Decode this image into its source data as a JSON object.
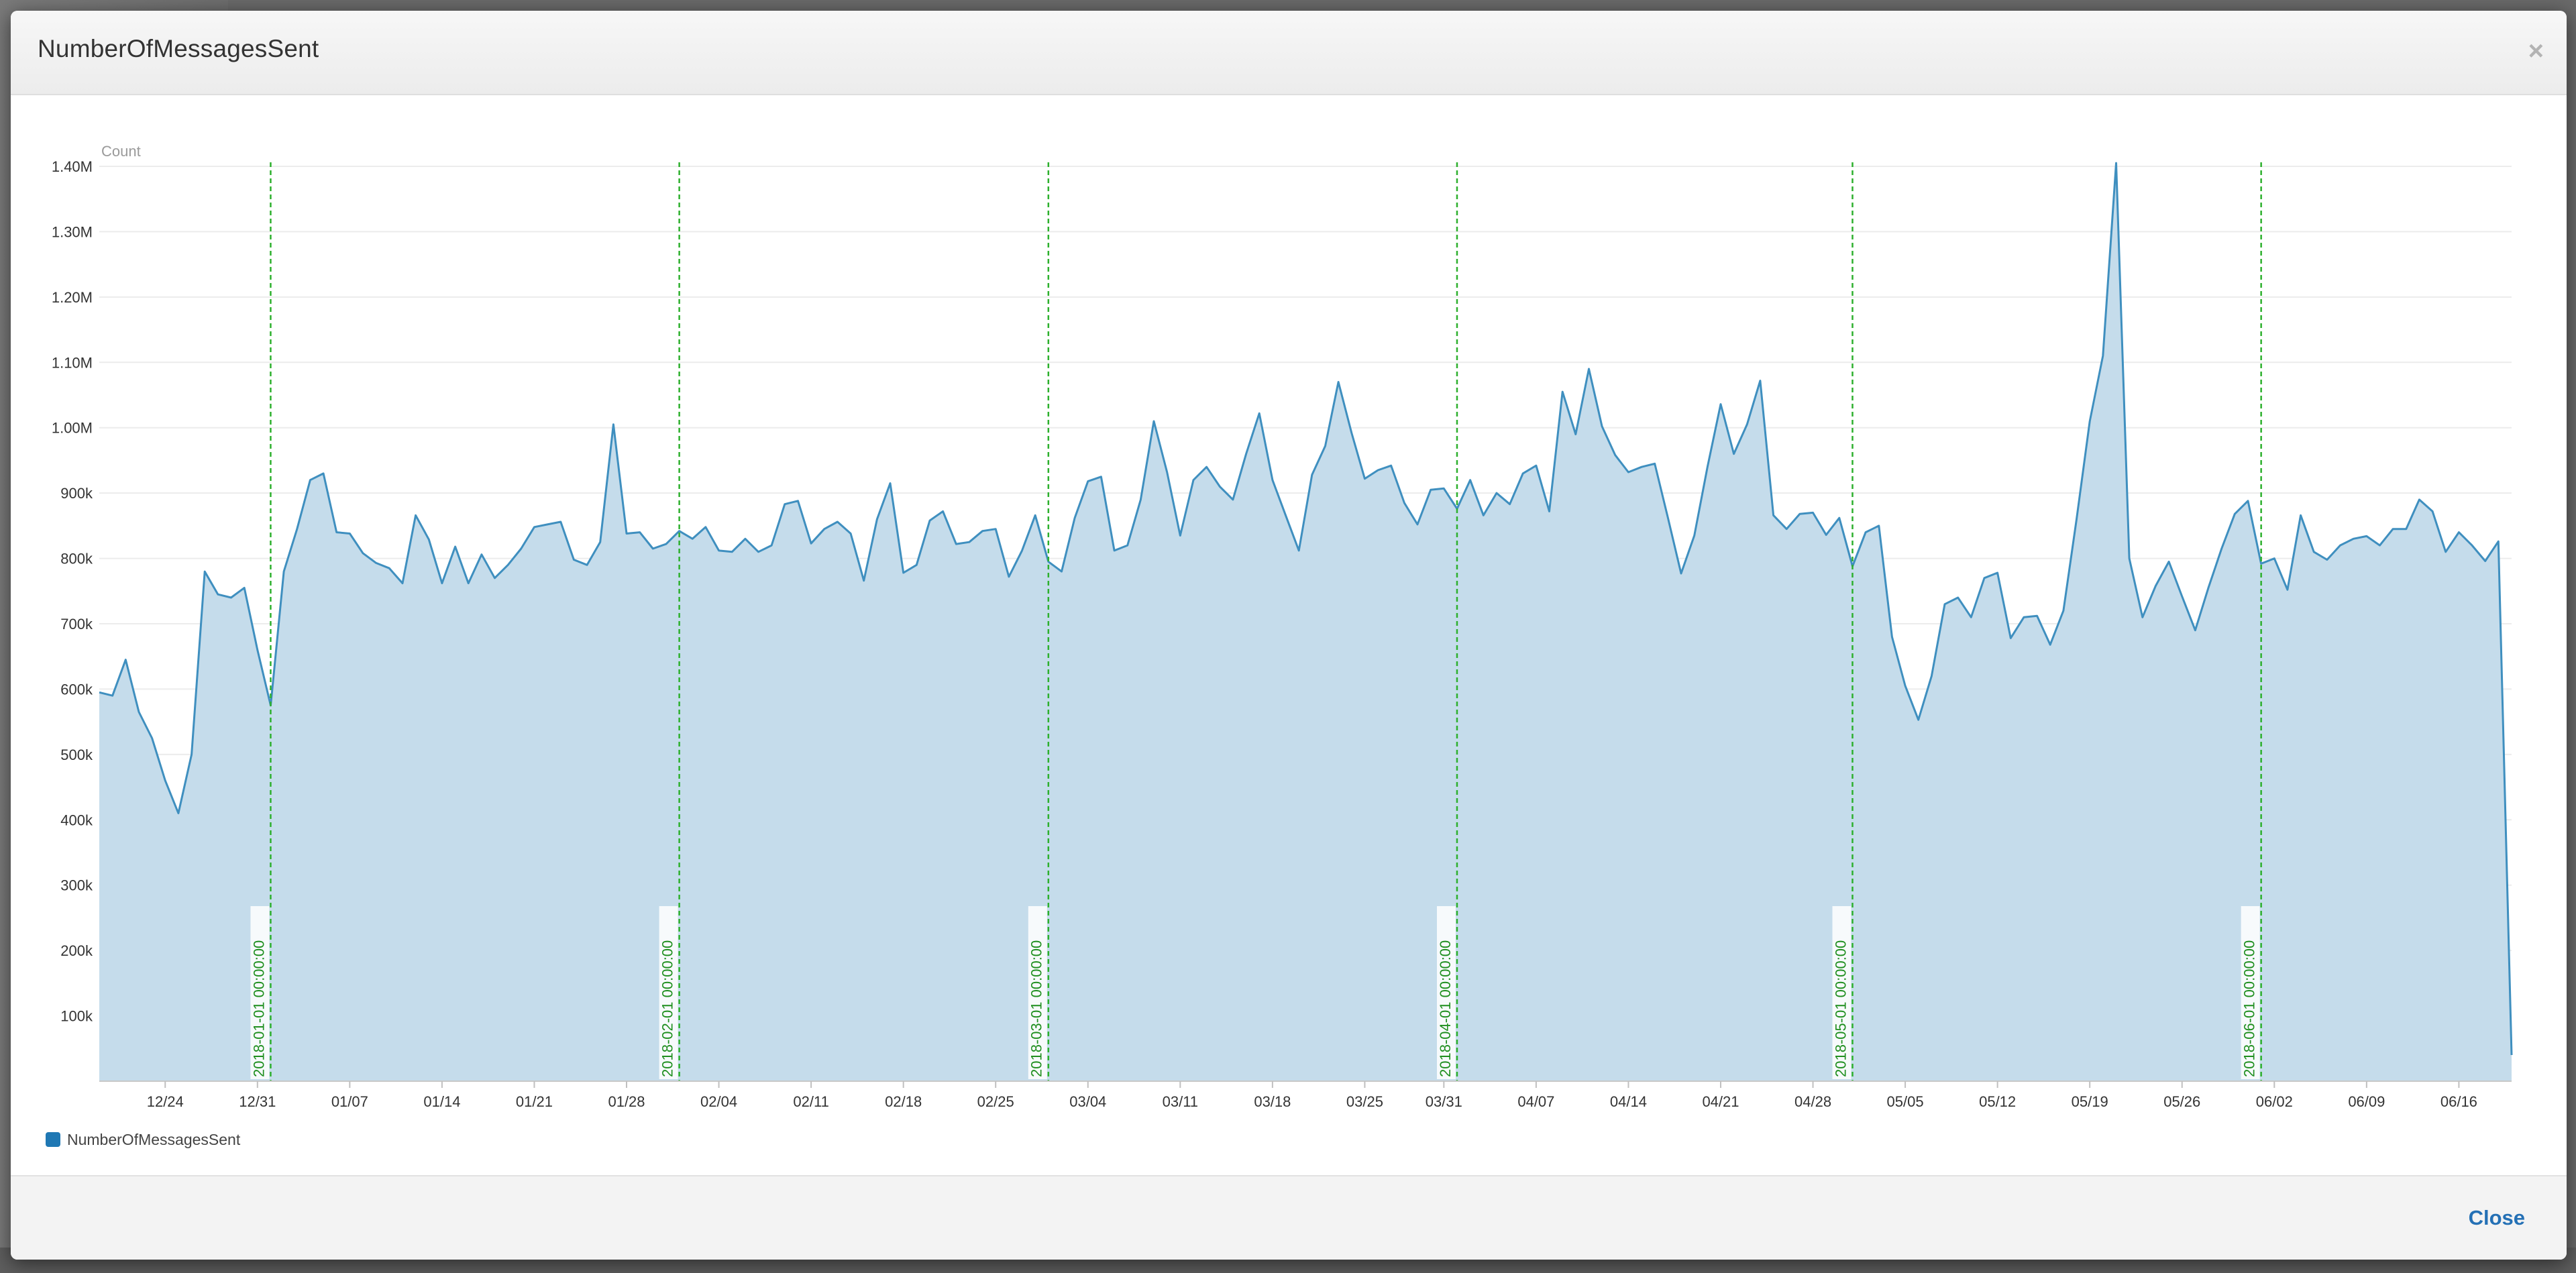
{
  "modal": {
    "title": "NumberOfMessagesSent",
    "close_x": "×",
    "close_label": "Close"
  },
  "colors": {
    "line": "#3f8fbf",
    "fill": "#c5dceb",
    "marker": "#2db02d",
    "marker_text": "#1f8f1f",
    "grid": "#ececec",
    "legend_swatch": "#1f78b4",
    "overlay": "#6a6a6a"
  },
  "chart_data": {
    "type": "area",
    "title": "",
    "ylabel": "Count",
    "xlabel": "",
    "ylim": [
      0,
      1400000
    ],
    "xlim": [
      "2017-12-19",
      "2018-06-20"
    ],
    "grid": true,
    "legend": "bottom-left",
    "y_ticks": [
      {
        "v": 100000,
        "label": "100k"
      },
      {
        "v": 200000,
        "label": "200k"
      },
      {
        "v": 300000,
        "label": "300k"
      },
      {
        "v": 400000,
        "label": "400k"
      },
      {
        "v": 500000,
        "label": "500k"
      },
      {
        "v": 600000,
        "label": "600k"
      },
      {
        "v": 700000,
        "label": "700k"
      },
      {
        "v": 800000,
        "label": "800k"
      },
      {
        "v": 900000,
        "label": "900k"
      },
      {
        "v": 1000000,
        "label": "1.00M"
      },
      {
        "v": 1100000,
        "label": "1.10M"
      },
      {
        "v": 1200000,
        "label": "1.20M"
      },
      {
        "v": 1300000,
        "label": "1.30M"
      },
      {
        "v": 1400000,
        "label": "1.40M"
      }
    ],
    "x_ticks": [
      {
        "date": "2017-12-24",
        "label": "12/24"
      },
      {
        "date": "2017-12-31",
        "label": "12/31"
      },
      {
        "date": "2018-01-07",
        "label": "01/07"
      },
      {
        "date": "2018-01-14",
        "label": "01/14"
      },
      {
        "date": "2018-01-21",
        "label": "01/21"
      },
      {
        "date": "2018-01-28",
        "label": "01/28"
      },
      {
        "date": "2018-02-04",
        "label": "02/04"
      },
      {
        "date": "2018-02-11",
        "label": "02/11"
      },
      {
        "date": "2018-02-18",
        "label": "02/18"
      },
      {
        "date": "2018-02-25",
        "label": "02/25"
      },
      {
        "date": "2018-03-04",
        "label": "03/04"
      },
      {
        "date": "2018-03-11",
        "label": "03/11"
      },
      {
        "date": "2018-03-18",
        "label": "03/18"
      },
      {
        "date": "2018-03-25",
        "label": "03/25"
      },
      {
        "date": "2018-03-31",
        "label": "03/31"
      },
      {
        "date": "2018-04-07",
        "label": "04/07"
      },
      {
        "date": "2018-04-14",
        "label": "04/14"
      },
      {
        "date": "2018-04-21",
        "label": "04/21"
      },
      {
        "date": "2018-04-28",
        "label": "04/28"
      },
      {
        "date": "2018-05-05",
        "label": "05/05"
      },
      {
        "date": "2018-05-12",
        "label": "05/12"
      },
      {
        "date": "2018-05-19",
        "label": "05/19"
      },
      {
        "date": "2018-05-26",
        "label": "05/26"
      },
      {
        "date": "2018-06-02",
        "label": "06/02"
      },
      {
        "date": "2018-06-09",
        "label": "06/09"
      },
      {
        "date": "2018-06-16",
        "label": "06/16"
      }
    ],
    "markers": [
      {
        "date": "2018-01-01",
        "label": "2018-01-01 00:00:00"
      },
      {
        "date": "2018-02-01",
        "label": "2018-02-01 00:00:00"
      },
      {
        "date": "2018-03-01",
        "label": "2018-03-01 00:00:00"
      },
      {
        "date": "2018-04-01",
        "label": "2018-04-01 00:00:00"
      },
      {
        "date": "2018-05-01",
        "label": "2018-05-01 00:00:00"
      },
      {
        "date": "2018-06-01",
        "label": "2018-06-01 00:00:00"
      }
    ],
    "series": [
      {
        "name": "NumberOfMessagesSent",
        "points": [
          [
            "2017-12-19",
            595000
          ],
          [
            "2017-12-20",
            590000
          ],
          [
            "2017-12-21",
            645000
          ],
          [
            "2017-12-22",
            565000
          ],
          [
            "2017-12-23",
            525000
          ],
          [
            "2017-12-24",
            460000
          ],
          [
            "2017-12-25",
            410000
          ],
          [
            "2017-12-26",
            500000
          ],
          [
            "2017-12-27",
            780000
          ],
          [
            "2017-12-28",
            745000
          ],
          [
            "2017-12-29",
            740000
          ],
          [
            "2017-12-30",
            755000
          ],
          [
            "2017-12-31",
            660000
          ],
          [
            "2018-01-01",
            575000
          ],
          [
            "2018-01-02",
            780000
          ],
          [
            "2018-01-03",
            845000
          ],
          [
            "2018-01-04",
            920000
          ],
          [
            "2018-01-05",
            930000
          ],
          [
            "2018-01-06",
            840000
          ],
          [
            "2018-01-07",
            838000
          ],
          [
            "2018-01-08",
            808000
          ],
          [
            "2018-01-09",
            793000
          ],
          [
            "2018-01-10",
            785000
          ],
          [
            "2018-01-11",
            762000
          ],
          [
            "2018-01-12",
            866000
          ],
          [
            "2018-01-13",
            829000
          ],
          [
            "2018-01-14",
            762000
          ],
          [
            "2018-01-15",
            818000
          ],
          [
            "2018-01-16",
            762000
          ],
          [
            "2018-01-17",
            806000
          ],
          [
            "2018-01-18",
            770000
          ],
          [
            "2018-01-19",
            790000
          ],
          [
            "2018-01-20",
            815000
          ],
          [
            "2018-01-21",
            848000
          ],
          [
            "2018-01-22",
            852000
          ],
          [
            "2018-01-23",
            856000
          ],
          [
            "2018-01-24",
            798000
          ],
          [
            "2018-01-25",
            790000
          ],
          [
            "2018-01-26",
            825000
          ],
          [
            "2018-01-27",
            1005000
          ],
          [
            "2018-01-28",
            838000
          ],
          [
            "2018-01-29",
            840000
          ],
          [
            "2018-01-30",
            815000
          ],
          [
            "2018-01-31",
            822000
          ],
          [
            "2018-02-01",
            842000
          ],
          [
            "2018-02-02",
            830000
          ],
          [
            "2018-02-03",
            848000
          ],
          [
            "2018-02-04",
            812000
          ],
          [
            "2018-02-05",
            810000
          ],
          [
            "2018-02-06",
            830000
          ],
          [
            "2018-02-07",
            810000
          ],
          [
            "2018-02-08",
            820000
          ],
          [
            "2018-02-09",
            883000
          ],
          [
            "2018-02-10",
            888000
          ],
          [
            "2018-02-11",
            823000
          ],
          [
            "2018-02-12",
            845000
          ],
          [
            "2018-02-13",
            856000
          ],
          [
            "2018-02-14",
            838000
          ],
          [
            "2018-02-15",
            766000
          ],
          [
            "2018-02-16",
            860000
          ],
          [
            "2018-02-17",
            915000
          ],
          [
            "2018-02-18",
            778000
          ],
          [
            "2018-02-19",
            790000
          ],
          [
            "2018-02-20",
            858000
          ],
          [
            "2018-02-21",
            872000
          ],
          [
            "2018-02-22",
            822000
          ],
          [
            "2018-02-23",
            825000
          ],
          [
            "2018-02-24",
            842000
          ],
          [
            "2018-02-25",
            845000
          ],
          [
            "2018-02-26",
            772000
          ],
          [
            "2018-02-27",
            812000
          ],
          [
            "2018-02-28",
            866000
          ],
          [
            "2018-03-01",
            795000
          ],
          [
            "2018-03-02",
            780000
          ],
          [
            "2018-03-03",
            862000
          ],
          [
            "2018-03-04",
            918000
          ],
          [
            "2018-03-05",
            925000
          ],
          [
            "2018-03-06",
            812000
          ],
          [
            "2018-03-07",
            820000
          ],
          [
            "2018-03-08",
            890000
          ],
          [
            "2018-03-09",
            1010000
          ],
          [
            "2018-03-10",
            932000
          ],
          [
            "2018-03-11",
            835000
          ],
          [
            "2018-03-12",
            920000
          ],
          [
            "2018-03-13",
            940000
          ],
          [
            "2018-03-14",
            910000
          ],
          [
            "2018-03-15",
            890000
          ],
          [
            "2018-03-16",
            960000
          ],
          [
            "2018-03-17",
            1022000
          ],
          [
            "2018-03-18",
            920000
          ],
          [
            "2018-03-19",
            866000
          ],
          [
            "2018-03-20",
            812000
          ],
          [
            "2018-03-21",
            928000
          ],
          [
            "2018-03-22",
            972000
          ],
          [
            "2018-03-23",
            1070000
          ],
          [
            "2018-03-24",
            992000
          ],
          [
            "2018-03-25",
            922000
          ],
          [
            "2018-03-26",
            935000
          ],
          [
            "2018-03-27",
            942000
          ],
          [
            "2018-03-28",
            885000
          ],
          [
            "2018-03-29",
            852000
          ],
          [
            "2018-03-30",
            905000
          ],
          [
            "2018-03-31",
            907000
          ],
          [
            "2018-04-01",
            876000
          ],
          [
            "2018-04-02",
            920000
          ],
          [
            "2018-04-03",
            866000
          ],
          [
            "2018-04-04",
            900000
          ],
          [
            "2018-04-05",
            883000
          ],
          [
            "2018-04-06",
            930000
          ],
          [
            "2018-04-07",
            942000
          ],
          [
            "2018-04-08",
            872000
          ],
          [
            "2018-04-09",
            1055000
          ],
          [
            "2018-04-10",
            990000
          ],
          [
            "2018-04-11",
            1090000
          ],
          [
            "2018-04-12",
            1002000
          ],
          [
            "2018-04-13",
            958000
          ],
          [
            "2018-04-14",
            932000
          ],
          [
            "2018-04-15",
            940000
          ],
          [
            "2018-04-16",
            945000
          ],
          [
            "2018-04-17",
            862000
          ],
          [
            "2018-04-18",
            777000
          ],
          [
            "2018-04-19",
            835000
          ],
          [
            "2018-04-20",
            940000
          ],
          [
            "2018-04-21",
            1036000
          ],
          [
            "2018-04-22",
            960000
          ],
          [
            "2018-04-23",
            1005000
          ],
          [
            "2018-04-24",
            1072000
          ],
          [
            "2018-04-25",
            866000
          ],
          [
            "2018-04-26",
            845000
          ],
          [
            "2018-04-27",
            868000
          ],
          [
            "2018-04-28",
            870000
          ],
          [
            "2018-04-29",
            836000
          ],
          [
            "2018-04-30",
            862000
          ],
          [
            "2018-05-01",
            788000
          ],
          [
            "2018-05-02",
            840000
          ],
          [
            "2018-05-03",
            850000
          ],
          [
            "2018-05-04",
            680000
          ],
          [
            "2018-05-05",
            605000
          ],
          [
            "2018-05-06",
            553000
          ],
          [
            "2018-05-07",
            620000
          ],
          [
            "2018-05-08",
            730000
          ],
          [
            "2018-05-09",
            740000
          ],
          [
            "2018-05-10",
            710000
          ],
          [
            "2018-05-11",
            770000
          ],
          [
            "2018-05-12",
            778000
          ],
          [
            "2018-05-13",
            678000
          ],
          [
            "2018-05-14",
            710000
          ],
          [
            "2018-05-15",
            712000
          ],
          [
            "2018-05-16",
            668000
          ],
          [
            "2018-05-17",
            720000
          ],
          [
            "2018-05-18",
            860000
          ],
          [
            "2018-05-19",
            1010000
          ],
          [
            "2018-05-20",
            1110000
          ],
          [
            "2018-05-21",
            1405000
          ],
          [
            "2018-05-22",
            800000
          ],
          [
            "2018-05-23",
            710000
          ],
          [
            "2018-05-24",
            758000
          ],
          [
            "2018-05-25",
            795000
          ],
          [
            "2018-05-26",
            742000
          ],
          [
            "2018-05-27",
            690000
          ],
          [
            "2018-05-28",
            755000
          ],
          [
            "2018-05-29",
            815000
          ],
          [
            "2018-05-30",
            868000
          ],
          [
            "2018-05-31",
            888000
          ],
          [
            "2018-06-01",
            792000
          ],
          [
            "2018-06-02",
            800000
          ],
          [
            "2018-06-03",
            752000
          ],
          [
            "2018-06-04",
            866000
          ],
          [
            "2018-06-05",
            810000
          ],
          [
            "2018-06-06",
            798000
          ],
          [
            "2018-06-07",
            820000
          ],
          [
            "2018-06-08",
            830000
          ],
          [
            "2018-06-09",
            834000
          ],
          [
            "2018-06-10",
            820000
          ],
          [
            "2018-06-11",
            845000
          ],
          [
            "2018-06-12",
            845000
          ],
          [
            "2018-06-13",
            890000
          ],
          [
            "2018-06-14",
            872000
          ],
          [
            "2018-06-15",
            810000
          ],
          [
            "2018-06-16",
            840000
          ],
          [
            "2018-06-17",
            820000
          ],
          [
            "2018-06-18",
            796000
          ],
          [
            "2018-06-19",
            826000
          ],
          [
            "2018-06-20",
            40000
          ]
        ]
      }
    ]
  }
}
